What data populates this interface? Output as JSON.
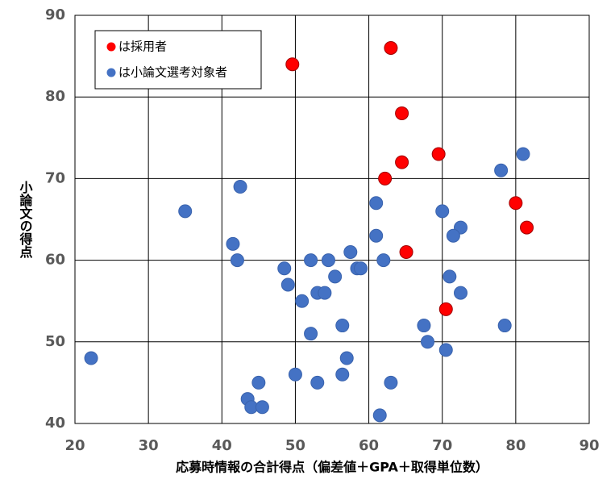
{
  "chart_data": {
    "type": "scatter",
    "x_label": "応募時情報の合計得点（偏差値＋GPA＋取得単位数）",
    "y_label": "小論文の得点",
    "xlim": [
      20,
      90
    ],
    "xticks": [
      20,
      30,
      40,
      50,
      60,
      70,
      80,
      90
    ],
    "ylim": [
      40,
      90
    ],
    "yticks": [
      40,
      50,
      60,
      70,
      80,
      90
    ],
    "grid": true,
    "legend": "upper left",
    "series": [
      {
        "name": "は採用者",
        "color": "#ff0000",
        "x": [
          49.6,
          63.0,
          64.5,
          64.5,
          69.5,
          62.2,
          80.0,
          81.5,
          65.1,
          70.5
        ],
        "values": [
          84,
          86,
          78,
          72,
          73,
          70,
          67,
          64,
          61,
          54
        ]
      },
      {
        "name": "は小論文選考対象者",
        "color": "#4472c4",
        "x": [
          22.2,
          35.0,
          42.5,
          41.5,
          42.1,
          48.5,
          49.0,
          50.9,
          52.1,
          54.5,
          53.0,
          54.0,
          55.4,
          57.5,
          58.4,
          58.9,
          52.1,
          56.4,
          57.0,
          56.4,
          50.0,
          53.0,
          45.0,
          43.5,
          44.0,
          45.5,
          61.0,
          61.0,
          62.0,
          63.0,
          61.5,
          70.0,
          72.5,
          71.5,
          71.0,
          72.5,
          67.5,
          68.0,
          70.5,
          78.0,
          81.0,
          78.5
        ],
        "values": [
          48,
          66,
          69,
          62,
          60,
          59,
          57,
          55,
          60,
          60,
          56,
          56,
          58,
          61,
          59,
          59,
          51,
          52,
          48,
          46,
          46,
          45,
          45,
          43,
          42,
          42,
          67,
          63,
          60,
          45,
          41,
          66,
          64,
          63,
          58,
          56,
          52,
          50,
          49,
          71,
          73,
          52
        ]
      }
    ]
  }
}
